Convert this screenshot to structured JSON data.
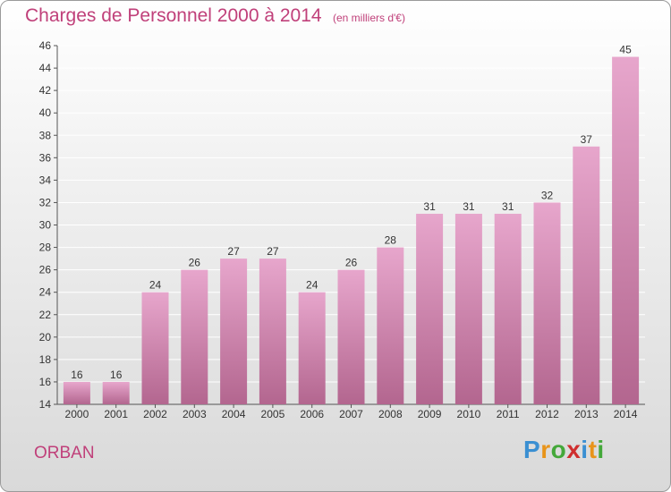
{
  "header": {
    "title": "Charges de Personnel 2000 à 2014",
    "subtitle": "(en milliers d'€)"
  },
  "footer": {
    "town": "ORBAN",
    "brand": [
      "P",
      "r",
      "o",
      "x",
      "i",
      "t",
      "i"
    ]
  },
  "colors": {
    "text_accent": "#c0407a",
    "bar_top": "#e7a6cc",
    "bar_bottom": "#b3668f",
    "brand_letters": [
      "#3a8fd2",
      "#e8941a",
      "#44a83a",
      "#cf2e2e",
      "#3a8fd2",
      "#e8941a",
      "#44a83a"
    ]
  },
  "chart_data": {
    "type": "bar",
    "title": "Charges de Personnel 2000 à 2014",
    "subtitle": "(en milliers d'€)",
    "xlabel": "",
    "ylabel": "",
    "categories": [
      "2000",
      "2001",
      "2002",
      "2003",
      "2004",
      "2005",
      "2006",
      "2007",
      "2008",
      "2009",
      "2010",
      "2011",
      "2012",
      "2013",
      "2014"
    ],
    "values": [
      16,
      16,
      24,
      26,
      27,
      27,
      24,
      26,
      28,
      31,
      31,
      31,
      32,
      37,
      45
    ],
    "ylim": [
      14,
      46
    ],
    "yticks": [
      14,
      16,
      18,
      20,
      22,
      24,
      26,
      28,
      30,
      32,
      34,
      36,
      38,
      40,
      42,
      44,
      46
    ],
    "grid": true,
    "legend": "none"
  }
}
